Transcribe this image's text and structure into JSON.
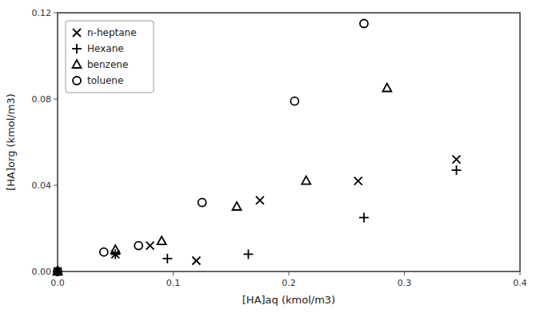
{
  "chart_data": {
    "type": "scatter",
    "x_label": "[HA]aq (kmol/m3)",
    "y_label": "[HA]org (kmol/m3)",
    "series": [
      {
        "name": "n-heptane",
        "color": "black",
        "marker": "x",
        "x": [
          0.0,
          0.05,
          0.08,
          0.12,
          0.175,
          0.26,
          0.345
        ],
        "values": [
          0.0,
          0.008,
          0.012,
          0.005,
          0.033,
          0.042,
          0.052
        ]
      },
      {
        "name": "Hexane",
        "color": "black",
        "marker": "plus",
        "x": [
          0.0,
          0.05,
          0.095,
          0.165,
          0.265,
          0.345
        ],
        "values": [
          0.0,
          0.008,
          0.006,
          0.008,
          0.025,
          0.047
        ]
      },
      {
        "name": "benzene",
        "color": "black",
        "marker": "triangle",
        "x": [
          0.0,
          0.05,
          0.09,
          0.155,
          0.215,
          0.285
        ],
        "values": [
          0.0,
          0.01,
          0.014,
          0.03,
          0.042,
          0.085
        ]
      },
      {
        "name": "toluene",
        "color": "black",
        "marker": "circle",
        "x": [
          0.0,
          0.04,
          0.07,
          0.125,
          0.205,
          0.265
        ],
        "values": [
          0.0,
          0.009,
          0.012,
          0.032,
          0.079,
          0.115
        ]
      }
    ],
    "xlim": [
      0,
      0.4
    ],
    "ylim": [
      0,
      0.12
    ],
    "xticks": [
      {
        "value": 0,
        "label": "0.0"
      },
      0.1,
      0.2,
      0.3,
      0.4
    ],
    "yticks": [
      {
        "value": 0,
        "label": "0.00"
      },
      0.04,
      0.08,
      0.12
    ],
    "grid": false,
    "legend": "upper-left"
  }
}
